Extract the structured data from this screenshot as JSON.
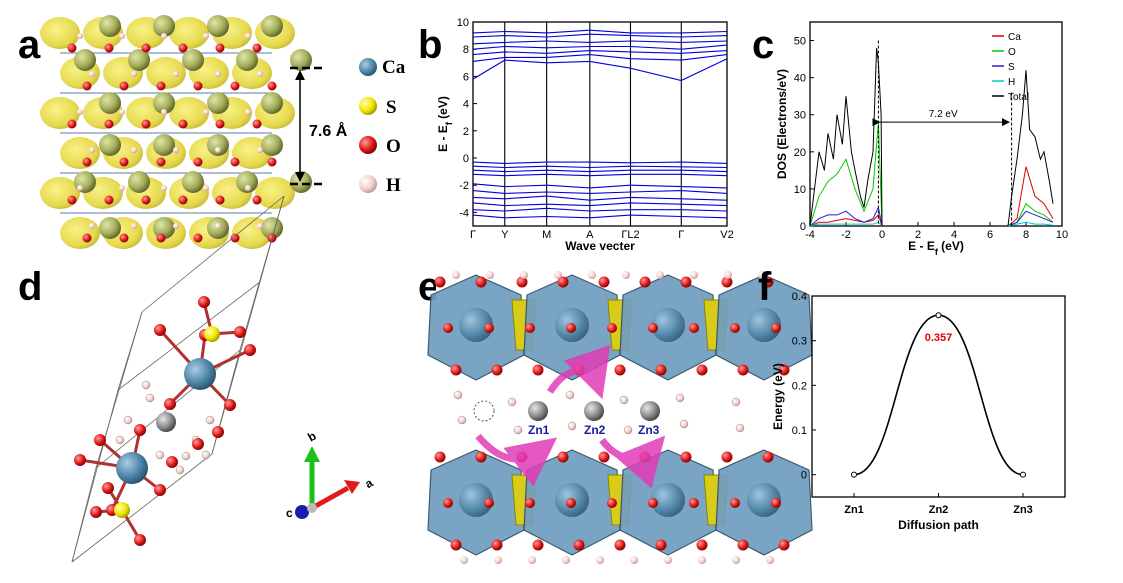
{
  "panels": {
    "a": {
      "label": "a",
      "spacing_label": "7.6 Å",
      "legend": [
        {
          "symbol": "Ca",
          "color": "#4f86a8"
        },
        {
          "symbol": "S",
          "color": "#f2e600"
        },
        {
          "symbol": "O",
          "color": "#e01818"
        },
        {
          "symbol": "H",
          "color": "#f3d1cc"
        }
      ]
    },
    "b": {
      "label": "b"
    },
    "c": {
      "label": "c"
    },
    "d": {
      "label": "d",
      "axis_b": "b",
      "axis_a": "a",
      "axis_c": "c"
    },
    "e": {
      "label": "e",
      "sites": [
        "Zn1",
        "Zn2",
        "Zn3"
      ]
    },
    "f": {
      "label": "f"
    }
  },
  "chart_data": [
    {
      "id": "band-structure",
      "type": "line",
      "xlabel": "Wave vecter",
      "ylabel": "E - E",
      "ylabel_sub": "f",
      "ylabel_unit": " (eV)",
      "ylim": [
        -5,
        10
      ],
      "yticks": [
        -4,
        -2,
        0,
        2,
        4,
        6,
        8,
        10
      ],
      "kpoint_labels": [
        "Γ",
        "Y",
        "M",
        "A",
        "ΓL2",
        "Γ",
        "V2"
      ],
      "kpoint_positions": [
        0,
        0.125,
        0.29,
        0.46,
        0.62,
        0.82,
        1.0
      ],
      "bands": [
        {
          "name": "",
          "x": [
            0,
            0.125,
            0.29,
            0.46,
            0.62,
            0.82,
            1.0
          ],
          "y": [
            5.8,
            7.2,
            7.0,
            7.1,
            6.6,
            5.7,
            7.3
          ]
        },
        {
          "name": "",
          "x": [
            0,
            0.125,
            0.29,
            0.46,
            0.62,
            0.82,
            1.0
          ],
          "y": [
            7.1,
            7.4,
            7.4,
            7.6,
            7.3,
            7.2,
            7.6
          ]
        },
        {
          "name": "",
          "x": [
            0,
            0.125,
            0.29,
            0.46,
            0.62,
            0.82,
            1.0
          ],
          "y": [
            7.6,
            7.8,
            7.7,
            7.9,
            7.8,
            7.7,
            7.9
          ]
        },
        {
          "name": "",
          "x": [
            0,
            0.125,
            0.29,
            0.46,
            0.62,
            0.82,
            1.0
          ],
          "y": [
            8.0,
            8.2,
            8.1,
            8.2,
            8.2,
            8.0,
            8.3
          ]
        },
        {
          "name": "",
          "x": [
            0,
            0.125,
            0.29,
            0.46,
            0.62,
            0.82,
            1.0
          ],
          "y": [
            8.4,
            8.5,
            8.6,
            8.5,
            8.6,
            8.5,
            8.6
          ]
        },
        {
          "name": "",
          "x": [
            0,
            0.125,
            0.29,
            0.46,
            0.62,
            0.82,
            1.0
          ],
          "y": [
            8.9,
            9.0,
            8.9,
            9.1,
            9.0,
            8.9,
            9.0
          ]
        },
        {
          "name": "",
          "x": [
            0,
            0.125,
            0.29,
            0.46,
            0.62,
            0.82,
            1.0
          ],
          "y": [
            9.2,
            9.3,
            9.2,
            9.4,
            9.2,
            9.2,
            9.3
          ]
        },
        {
          "name": "",
          "x": [
            0,
            0.125,
            0.29,
            0.46,
            0.62,
            0.82,
            1.0
          ],
          "y": [
            -0.3,
            -0.4,
            -0.3,
            -0.3,
            -0.35,
            -0.3,
            -0.4
          ]
        },
        {
          "name": "",
          "x": [
            0,
            0.125,
            0.29,
            0.46,
            0.62,
            0.82,
            1.0
          ],
          "y": [
            -0.6,
            -0.7,
            -0.6,
            -0.7,
            -0.6,
            -0.65,
            -0.7
          ]
        },
        {
          "name": "",
          "x": [
            0,
            0.125,
            0.29,
            0.46,
            0.62,
            0.82,
            1.0
          ],
          "y": [
            -0.9,
            -1.0,
            -0.9,
            -1.0,
            -0.9,
            -0.9,
            -1.0
          ]
        },
        {
          "name": "",
          "x": [
            0,
            0.125,
            0.29,
            0.46,
            0.62,
            0.82,
            1.0
          ],
          "y": [
            -1.2,
            -1.3,
            -1.2,
            -1.3,
            -1.2,
            -1.2,
            -1.3
          ]
        },
        {
          "name": "",
          "x": [
            0,
            0.125,
            0.29,
            0.46,
            0.62,
            0.82,
            1.0
          ],
          "y": [
            -1.9,
            -2.1,
            -2.0,
            -2.2,
            -2.0,
            -2.1,
            -2.2
          ]
        },
        {
          "name": "",
          "x": [
            0,
            0.125,
            0.29,
            0.46,
            0.62,
            0.82,
            1.0
          ],
          "y": [
            -2.4,
            -2.6,
            -2.5,
            -2.6,
            -2.5,
            -2.4,
            -2.6
          ]
        },
        {
          "name": "",
          "x": [
            0,
            0.125,
            0.29,
            0.46,
            0.62,
            0.82,
            1.0
          ],
          "y": [
            -2.9,
            -3.0,
            -2.8,
            -3.1,
            -2.9,
            -3.0,
            -3.1
          ]
        },
        {
          "name": "",
          "x": [
            0,
            0.125,
            0.29,
            0.46,
            0.62,
            0.82,
            1.0
          ],
          "y": [
            -3.3,
            -3.5,
            -3.4,
            -3.5,
            -3.3,
            -3.4,
            -3.5
          ]
        },
        {
          "name": "",
          "x": [
            0,
            0.125,
            0.29,
            0.46,
            0.62,
            0.82,
            1.0
          ],
          "y": [
            -3.8,
            -3.9,
            -3.7,
            -3.9,
            -3.8,
            -3.8,
            -3.9
          ]
        },
        {
          "name": "",
          "x": [
            0,
            0.125,
            0.29,
            0.46,
            0.62,
            0.82,
            1.0
          ],
          "y": [
            -4.2,
            -4.4,
            -4.3,
            -4.4,
            -4.2,
            -4.3,
            -4.4
          ]
        }
      ]
    },
    {
      "id": "dos",
      "type": "line",
      "xlabel": "E - E",
      "xlabel_sub": "f",
      "xlabel_unit": " (eV)",
      "ylabel": "DOS (Electrons/eV)",
      "xlim": [
        -4,
        10
      ],
      "ylim": [
        0,
        55
      ],
      "xticks": [
        -4,
        -2,
        0,
        2,
        4,
        6,
        8,
        10
      ],
      "yticks": [
        0,
        10,
        20,
        30,
        40,
        50
      ],
      "legend_position": "top-right",
      "gap_label": "7.2 eV",
      "gap_from": -0.2,
      "gap_to": 7.0,
      "gap_y": 28,
      "series": [
        {
          "name": "Ca",
          "color": "#dd0000",
          "x": [
            -4,
            -3.5,
            -3,
            -2.5,
            -2,
            -1.5,
            -1,
            -0.5,
            -0.2,
            0,
            7,
            7.5,
            8,
            8.5,
            9,
            9.5
          ],
          "y": [
            0,
            1,
            1,
            1.5,
            2,
            1.5,
            1,
            1.5,
            3,
            0,
            0,
            2,
            16,
            8,
            6,
            2
          ]
        },
        {
          "name": "O",
          "color": "#00cc00",
          "x": [
            -4,
            -3.5,
            -3,
            -2.5,
            -2,
            -1.5,
            -1,
            -0.5,
            -0.2,
            0,
            7,
            7.5,
            8,
            8.5,
            9,
            9.5
          ],
          "y": [
            0,
            8,
            12,
            14,
            18,
            10,
            4,
            10,
            28,
            0,
            0,
            1,
            6,
            4,
            3,
            1
          ]
        },
        {
          "name": "S",
          "color": "#2020cc",
          "x": [
            -4,
            -3.5,
            -3,
            -2.5,
            -2,
            -1.5,
            -1,
            -0.5,
            -0.2,
            0,
            7,
            7.5,
            8,
            8.5,
            9,
            9.5
          ],
          "y": [
            0,
            2,
            3,
            3,
            4,
            2,
            1,
            2,
            5,
            0,
            0,
            1,
            4,
            3,
            2,
            1
          ]
        },
        {
          "name": "H",
          "color": "#00cccc",
          "x": [
            -4,
            -3.5,
            -3,
            -2.5,
            -2,
            -1.5,
            -1,
            -0.5,
            -0.2,
            0,
            7,
            7.5,
            8,
            8.5,
            9,
            9.5
          ],
          "y": [
            0,
            0.5,
            0.5,
            0.5,
            0.5,
            0.5,
            0.5,
            0.5,
            1,
            0,
            0,
            0.5,
            1,
            0.5,
            0.5,
            0.2
          ]
        },
        {
          "name": "Total",
          "color": "#000000",
          "x": [
            -4,
            -3.7,
            -3.5,
            -3.2,
            -3,
            -2.7,
            -2.5,
            -2.2,
            -2,
            -1.7,
            -1.5,
            -1.2,
            -1,
            -0.8,
            -0.5,
            -0.3,
            -0.2,
            -0.05,
            0,
            7,
            7.2,
            7.5,
            7.8,
            8,
            8.2,
            8.5,
            8.8,
            9,
            9.3,
            9.5
          ],
          "y": [
            0,
            12,
            20,
            15,
            25,
            18,
            30,
            22,
            35,
            20,
            15,
            8,
            5,
            12,
            20,
            48,
            44,
            30,
            0,
            0,
            8,
            18,
            30,
            42,
            26,
            24,
            18,
            20,
            12,
            6
          ]
        }
      ]
    },
    {
      "id": "diffusion-energy",
      "type": "line",
      "xlabel": "Diffusion path",
      "ylabel": "Energy (eV)",
      "ylim": [
        -0.05,
        0.4
      ],
      "yticks": [
        0.0,
        0.1,
        0.2,
        0.3,
        0.4
      ],
      "categories": [
        "Zn1",
        "Zn2",
        "Zn3"
      ],
      "values": [
        0.0,
        0.357,
        0.0
      ],
      "peak_label": "0.357",
      "peak_label_color": "#e00000"
    }
  ]
}
